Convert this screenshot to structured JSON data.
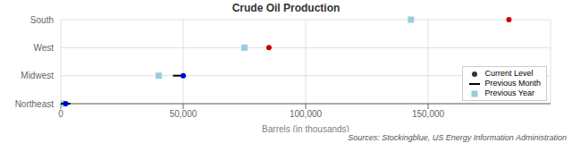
{
  "chart_data": {
    "type": "dot",
    "title": "Crude Oil Production",
    "xlabel": "Barrels (in thousands)",
    "annotations": [
      "Sources: Stockingblue, US Energy Information Administration"
    ],
    "categories": [
      "South",
      "West",
      "Midwest",
      "Northeast"
    ],
    "series": [
      {
        "name": "Current Level",
        "marker": "circle",
        "colors": [
          "#cc0000",
          "#cc0000",
          "#0000cc",
          "#0000cc"
        ],
        "values": [
          183000,
          85000,
          50000,
          2000
        ]
      },
      {
        "name": "Previous Month",
        "marker": "line",
        "color": "#000000",
        "values": [
          null,
          null,
          48000,
          1800
        ]
      },
      {
        "name": "Previous Year",
        "marker": "square",
        "color": "#99ccdd",
        "values": [
          143000,
          75000,
          40000,
          500
        ]
      }
    ],
    "xlim": [
      0,
      200000
    ],
    "xticks": [
      0,
      {
        "value": 50000,
        "label": "50,000"
      },
      {
        "value": 100000,
        "label": "100,000"
      },
      {
        "value": 150000,
        "label": "150,000"
      }
    ],
    "grid": true,
    "legend": "lower right"
  }
}
